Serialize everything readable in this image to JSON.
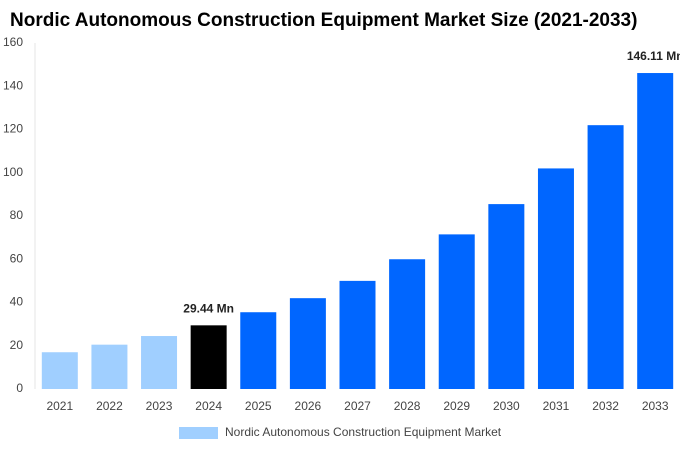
{
  "chart_data": {
    "type": "bar",
    "title": "Nordic Autonomous Construction Equipment Market Size (2021-2033)",
    "categories": [
      "2021",
      "2022",
      "2023",
      "2024",
      "2025",
      "2026",
      "2027",
      "2028",
      "2029",
      "2030",
      "2031",
      "2032",
      "2033"
    ],
    "series": [
      {
        "name": "Nordic Autonomous Construction Equipment Market",
        "color": "#a0cfff",
        "values": [
          17,
          20.5,
          24.5,
          29.44,
          35.5,
          42,
          50,
          60,
          71.5,
          85.5,
          102,
          122,
          146.11
        ],
        "value_labels": [
          null,
          null,
          null,
          "29.44 Mn",
          null,
          null,
          null,
          null,
          null,
          null,
          null,
          null,
          "146.11 Mn"
        ],
        "bar_colors": [
          "#a0cfff",
          "#a0cfff",
          "#a0cfff",
          "#000000",
          "#0066ff",
          "#0066ff",
          "#0066ff",
          "#0066ff",
          "#0066ff",
          "#0066ff",
          "#0066ff",
          "#0066ff",
          "#0066ff"
        ]
      }
    ],
    "ylim": [
      0,
      160
    ],
    "yticks": [
      0,
      20,
      40,
      60,
      80,
      100,
      120,
      140,
      160
    ],
    "grid": false,
    "legend": "bottom"
  }
}
